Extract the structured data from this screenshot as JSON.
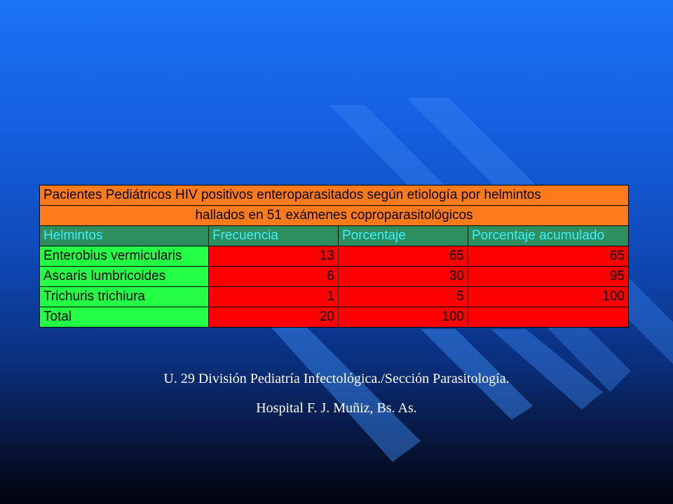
{
  "table": {
    "title_line1": "Pacientes Pediátricos HIV positivos enteroparasitados según etiología por helmintos",
    "title_line2": "hallados en 51 exámenes coproparasitológicos",
    "headers": [
      "Helmintos",
      "Frecuencia",
      "Porcentaje",
      "Porcentaje acumulado"
    ],
    "rows": [
      [
        "Enterobius vermicularis",
        "13",
        "65",
        "65"
      ],
      [
        "Ascaris lumbricoides",
        "6",
        "30",
        "95"
      ],
      [
        "Trichuris trichiura",
        "1",
        "5",
        "100"
      ],
      [
        "Total",
        "20",
        "100",
        ""
      ]
    ]
  },
  "caption": {
    "line1": "U. 29  División Pediatría Infectológica./Sección  Parasitología.",
    "line2": "Hospital F. J. Muñiz, Bs. As."
  },
  "colors": {
    "title_bg": "#ff7a1a",
    "header_bg": "#2e8e5e",
    "header_text": "#3ef0ff",
    "label_bg": "#22ff44",
    "value_bg": "#ff0000"
  }
}
